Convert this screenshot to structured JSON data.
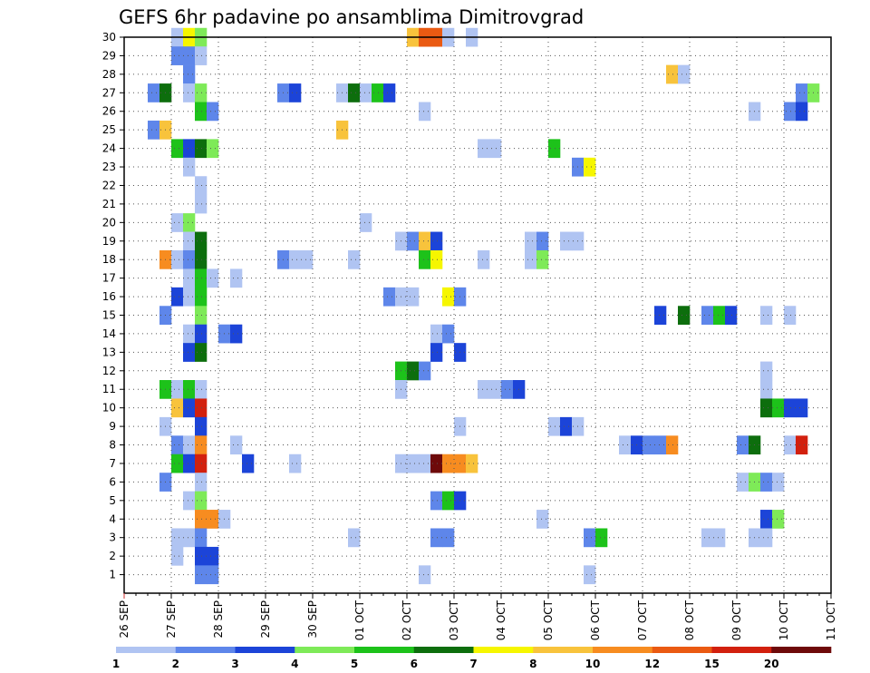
{
  "chart_data": {
    "type": "heatmap",
    "title": "GEFS 6hr padavine po ansamblima Dimitrovgrad",
    "x_labels": [
      "26 SEP",
      "27 SEP",
      "28 SEP",
      "29 SEP",
      "30 SEP",
      "01 OCT",
      "02 OCT",
      "03 OCT",
      "04 OCT",
      "05 OCT",
      "06 OCT",
      "07 OCT",
      "08 OCT",
      "09 OCT",
      "10 OCT",
      "11 OCT"
    ],
    "y_labels": [
      "1",
      "2",
      "3",
      "4",
      "5",
      "6",
      "7",
      "8",
      "9",
      "10",
      "11",
      "12",
      "13",
      "14",
      "15",
      "16",
      "17",
      "18",
      "19",
      "20",
      "21",
      "22",
      "23",
      "24",
      "25",
      "26",
      "27",
      "28",
      "29",
      "30"
    ],
    "x_range_days": [
      0,
      15
    ],
    "time_step_hours": 6,
    "y_range": [
      0,
      30
    ],
    "grid": true,
    "legend_placement": "bottom",
    "legend_levels": [
      "1",
      "2",
      "3",
      "4",
      "5",
      "6",
      "7",
      "8",
      "10",
      "12",
      "15",
      "20"
    ],
    "legend_colors": [
      "#b0c4f2",
      "#5e86ea",
      "#1c44d8",
      "#7eea58",
      "#1dc21a",
      "#0d6e0d",
      "#f6f600",
      "#f8c33c",
      "#f78c20",
      "#ea5a12",
      "#d2200e",
      "#6e0a0a"
    ],
    "cells": [
      [
        30,
        4,
        1
      ],
      [
        30,
        5,
        7
      ],
      [
        30,
        6,
        4
      ],
      [
        30,
        24,
        8
      ],
      [
        30,
        25,
        12
      ],
      [
        30,
        26,
        12
      ],
      [
        30,
        27,
        1
      ],
      [
        30,
        29,
        1
      ],
      [
        29,
        4,
        2
      ],
      [
        29,
        5,
        2
      ],
      [
        29,
        6,
        1
      ],
      [
        28,
        5,
        2
      ],
      [
        28,
        46,
        8
      ],
      [
        28,
        47,
        1
      ],
      [
        27,
        2,
        2
      ],
      [
        27,
        3,
        6
      ],
      [
        27,
        5,
        1
      ],
      [
        27,
        6,
        4
      ],
      [
        27,
        13,
        2
      ],
      [
        27,
        14,
        3
      ],
      [
        27,
        18,
        1
      ],
      [
        27,
        19,
        6
      ],
      [
        27,
        20,
        1
      ],
      [
        27,
        21,
        5
      ],
      [
        27,
        22,
        3
      ],
      [
        27,
        57,
        2
      ],
      [
        27,
        58,
        4
      ],
      [
        26,
        6,
        5
      ],
      [
        26,
        7,
        2
      ],
      [
        26,
        25,
        1
      ],
      [
        26,
        53,
        1
      ],
      [
        26,
        56,
        2
      ],
      [
        26,
        57,
        3
      ],
      [
        25,
        2,
        2
      ],
      [
        25,
        3,
        8
      ],
      [
        25,
        18,
        8
      ],
      [
        24,
        4,
        5
      ],
      [
        24,
        5,
        3
      ],
      [
        24,
        6,
        6
      ],
      [
        24,
        7,
        4
      ],
      [
        24,
        30,
        1
      ],
      [
        24,
        31,
        1
      ],
      [
        24,
        36,
        5
      ],
      [
        23,
        5,
        1
      ],
      [
        23,
        38,
        2
      ],
      [
        23,
        39,
        7
      ],
      [
        22,
        6,
        1
      ],
      [
        21,
        6,
        1
      ],
      [
        20,
        4,
        1
      ],
      [
        20,
        5,
        4
      ],
      [
        20,
        20,
        1
      ],
      [
        19,
        5,
        1
      ],
      [
        19,
        6,
        6
      ],
      [
        19,
        23,
        1
      ],
      [
        19,
        24,
        2
      ],
      [
        19,
        25,
        8
      ],
      [
        19,
        26,
        3
      ],
      [
        19,
        34,
        1
      ],
      [
        19,
        35,
        2
      ],
      [
        19,
        37,
        1
      ],
      [
        19,
        38,
        1
      ],
      [
        18,
        3,
        10
      ],
      [
        18,
        4,
        1
      ],
      [
        18,
        5,
        2
      ],
      [
        18,
        6,
        6
      ],
      [
        18,
        13,
        2
      ],
      [
        18,
        14,
        1
      ],
      [
        18,
        15,
        1
      ],
      [
        18,
        19,
        1
      ],
      [
        18,
        25,
        5
      ],
      [
        18,
        26,
        7
      ],
      [
        18,
        30,
        1
      ],
      [
        18,
        34,
        1
      ],
      [
        18,
        35,
        4
      ],
      [
        17,
        5,
        1
      ],
      [
        17,
        6,
        5
      ],
      [
        17,
        7,
        1
      ],
      [
        17,
        9,
        1
      ],
      [
        16,
        4,
        3
      ],
      [
        16,
        5,
        1
      ],
      [
        16,
        6,
        5
      ],
      [
        16,
        22,
        2
      ],
      [
        16,
        23,
        1
      ],
      [
        16,
        24,
        1
      ],
      [
        16,
        27,
        7
      ],
      [
        16,
        28,
        2
      ],
      [
        15,
        3,
        2
      ],
      [
        15,
        6,
        4
      ],
      [
        15,
        45,
        3
      ],
      [
        15,
        47,
        6
      ],
      [
        15,
        49,
        2
      ],
      [
        15,
        50,
        5
      ],
      [
        15,
        51,
        3
      ],
      [
        15,
        54,
        1
      ],
      [
        15,
        56,
        1
      ],
      [
        14,
        5,
        1
      ],
      [
        14,
        6,
        3
      ],
      [
        14,
        8,
        2
      ],
      [
        14,
        9,
        3
      ],
      [
        14,
        26,
        1
      ],
      [
        14,
        27,
        2
      ],
      [
        13,
        5,
        3
      ],
      [
        13,
        6,
        6
      ],
      [
        13,
        26,
        3
      ],
      [
        13,
        28,
        3
      ],
      [
        12,
        23,
        5
      ],
      [
        12,
        24,
        6
      ],
      [
        12,
        25,
        2
      ],
      [
        12,
        54,
        1
      ],
      [
        11,
        3,
        5
      ],
      [
        11,
        4,
        1
      ],
      [
        11,
        5,
        5
      ],
      [
        11,
        6,
        1
      ],
      [
        11,
        23,
        1
      ],
      [
        11,
        30,
        1
      ],
      [
        11,
        31,
        1
      ],
      [
        11,
        32,
        2
      ],
      [
        11,
        33,
        3
      ],
      [
        11,
        54,
        1
      ],
      [
        10,
        4,
        8
      ],
      [
        10,
        5,
        3
      ],
      [
        10,
        6,
        15
      ],
      [
        10,
        54,
        6
      ],
      [
        10,
        55,
        5
      ],
      [
        10,
        56,
        3
      ],
      [
        10,
        57,
        3
      ],
      [
        9,
        3,
        1
      ],
      [
        9,
        6,
        3
      ],
      [
        9,
        28,
        1
      ],
      [
        9,
        36,
        1
      ],
      [
        9,
        37,
        3
      ],
      [
        9,
        38,
        1
      ],
      [
        8,
        4,
        2
      ],
      [
        8,
        5,
        1
      ],
      [
        8,
        6,
        10
      ],
      [
        8,
        9,
        1
      ],
      [
        8,
        42,
        1
      ],
      [
        8,
        43,
        3
      ],
      [
        8,
        44,
        2
      ],
      [
        8,
        45,
        2
      ],
      [
        8,
        46,
        10
      ],
      [
        8,
        52,
        2
      ],
      [
        8,
        53,
        6
      ],
      [
        8,
        56,
        1
      ],
      [
        8,
        57,
        15
      ],
      [
        7,
        4,
        5
      ],
      [
        7,
        5,
        3
      ],
      [
        7,
        6,
        15
      ],
      [
        7,
        10,
        3
      ],
      [
        7,
        14,
        1
      ],
      [
        7,
        23,
        1
      ],
      [
        7,
        24,
        1
      ],
      [
        7,
        25,
        1
      ],
      [
        7,
        26,
        20
      ],
      [
        7,
        27,
        10
      ],
      [
        7,
        28,
        10
      ],
      [
        7,
        29,
        8
      ],
      [
        6,
        3,
        2
      ],
      [
        6,
        6,
        1
      ],
      [
        6,
        52,
        1
      ],
      [
        6,
        53,
        4
      ],
      [
        6,
        54,
        2
      ],
      [
        6,
        55,
        1
      ],
      [
        5,
        5,
        1
      ],
      [
        5,
        6,
        4
      ],
      [
        5,
        26,
        2
      ],
      [
        5,
        27,
        5
      ],
      [
        5,
        28,
        3
      ],
      [
        4,
        6,
        10
      ],
      [
        4,
        7,
        10
      ],
      [
        4,
        8,
        1
      ],
      [
        4,
        35,
        1
      ],
      [
        4,
        54,
        3
      ],
      [
        4,
        55,
        4
      ],
      [
        3,
        4,
        1
      ],
      [
        3,
        5,
        1
      ],
      [
        3,
        6,
        2
      ],
      [
        3,
        19,
        1
      ],
      [
        3,
        26,
        2
      ],
      [
        3,
        27,
        2
      ],
      [
        3,
        39,
        2
      ],
      [
        3,
        40,
        5
      ],
      [
        3,
        49,
        1
      ],
      [
        3,
        50,
        1
      ],
      [
        3,
        53,
        1
      ],
      [
        3,
        54,
        1
      ],
      [
        2,
        4,
        1
      ],
      [
        2,
        6,
        3
      ],
      [
        2,
        7,
        3
      ],
      [
        1,
        6,
        2
      ],
      [
        1,
        7,
        2
      ],
      [
        1,
        25,
        1
      ],
      [
        1,
        39,
        1
      ]
    ]
  }
}
